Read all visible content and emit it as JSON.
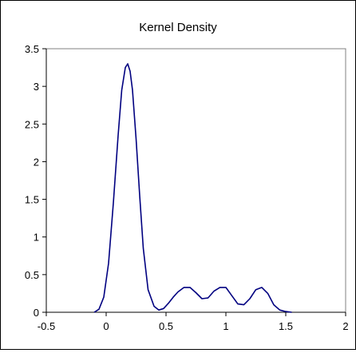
{
  "chart_data": {
    "type": "line",
    "title": "Kernel Density",
    "xlabel": "",
    "ylabel": "",
    "xlim": [
      -0.5,
      2
    ],
    "ylim": [
      0,
      3.5
    ],
    "x_ticks": [
      "-0.5",
      "0",
      "0.5",
      "1",
      "1.5",
      "2"
    ],
    "y_ticks": [
      "0",
      "0.5",
      "1",
      "1.5",
      "2",
      "2.5",
      "3",
      "3.5"
    ],
    "grid": false,
    "legend": "none",
    "series": [
      {
        "color": "#000080",
        "x": [
          -0.1,
          -0.06,
          -0.02,
          0.02,
          0.06,
          0.1,
          0.13,
          0.16,
          0.18,
          0.2,
          0.22,
          0.25,
          0.28,
          0.31,
          0.35,
          0.4,
          0.44,
          0.48,
          0.52,
          0.56,
          0.6,
          0.65,
          0.7,
          0.75,
          0.8,
          0.85,
          0.9,
          0.95,
          1.0,
          1.05,
          1.1,
          1.15,
          1.2,
          1.25,
          1.3,
          1.35,
          1.4,
          1.45,
          1.5,
          1.55
        ],
        "y": [
          0.0,
          0.04,
          0.2,
          0.65,
          1.45,
          2.35,
          2.95,
          3.25,
          3.3,
          3.2,
          2.95,
          2.3,
          1.55,
          0.85,
          0.3,
          0.08,
          0.03,
          0.05,
          0.12,
          0.2,
          0.27,
          0.33,
          0.33,
          0.26,
          0.18,
          0.19,
          0.28,
          0.33,
          0.33,
          0.22,
          0.11,
          0.1,
          0.18,
          0.3,
          0.33,
          0.25,
          0.1,
          0.03,
          0.01,
          0.0
        ]
      }
    ]
  }
}
